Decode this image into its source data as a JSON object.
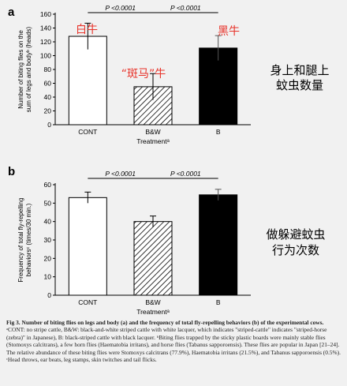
{
  "annotations_cn": {
    "white_cow": "白牛",
    "striped_cow": "“斑马”牛",
    "black_cow": "黑牛",
    "panel_a_note_line1": "身上和腿上",
    "panel_a_note_line2": "蚊虫数量",
    "panel_b_note_line1": "做躲避蚊虫",
    "panel_b_note_line2": "行为次数"
  },
  "caption": {
    "head": "Fig 3. Number of biting flies on legs and body (a) and the frequency of total fly-repelling behaviors (b) of the experimental cows.",
    "body": " ᵃCONT: no stripe cattle, B&W: black-and-white striped cattle with white lacquer, which indicates \"striped-cattle\" indicates \"striped-horse (zebra)\" in Japanese), B: black-striped cattle with black lacquer. ᵇBiting flies trapped by the sticky plastic boards were mainly stable flies (Stomoxys calcitrans), a few horn flies (Haematobia irritans), and horse flies (Tabanus sapporoensis). These flies are popular in Japan [21–24]. The relative abundance of these biting flies were Stomoxys calcitrans (77.9%), Haematobia irritans (21.5%), and Tabanus sapporoensis (0.5%). ᶜHead throws, ear beats, leg stamps, skin twitches and tail flicks."
  },
  "colors": {
    "background": "#f1f1f1",
    "cont_bar": "#ffffff",
    "bw_bar": "hatched",
    "b_bar": "#000000",
    "annotation_red": "#e8332a"
  },
  "chart_data": [
    {
      "panel": "a",
      "type": "bar",
      "categories": [
        "CONT",
        "B&W",
        "B"
      ],
      "values": [
        128,
        55,
        111
      ],
      "errors": [
        19,
        19,
        18
      ],
      "xlabel": "Treatmentᵃ",
      "ylabel": "Number of biting flies on the sum of legs and bodyᵇ (heads)",
      "ylim": [
        0,
        160
      ],
      "yticks": [
        0,
        20,
        40,
        60,
        80,
        100,
        120,
        140,
        160
      ],
      "significance": [
        {
          "from": 0,
          "to": 1,
          "label": "P <0.0001"
        },
        {
          "from": 1,
          "to": 2,
          "label": "P <0.0001"
        }
      ]
    },
    {
      "panel": "b",
      "type": "bar",
      "categories": [
        "CONT",
        "B&W",
        "B"
      ],
      "values": [
        53,
        40,
        54.5
      ],
      "errors": [
        3,
        3,
        3
      ],
      "xlabel": "Treatmentᵃ",
      "ylabel": "Frequency of total fly-repelling behaviorsᶜ (times/30 min.)",
      "ylim": [
        0,
        60
      ],
      "yticks": [
        0,
        10,
        20,
        30,
        40,
        50,
        60
      ],
      "significance": [
        {
          "from": 0,
          "to": 1,
          "label": "P <0.0001"
        },
        {
          "from": 1,
          "to": 2,
          "label": "P <0.0001"
        }
      ]
    }
  ]
}
